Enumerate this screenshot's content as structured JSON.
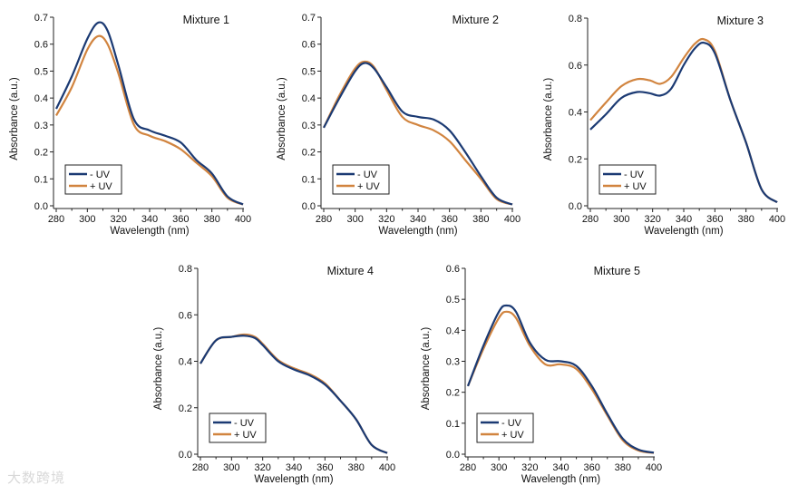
{
  "colors": {
    "minus_uv": "#1b3a73",
    "plus_uv": "#d1843f"
  },
  "logo_text": "大数跨境",
  "chart_data": [
    {
      "type": "line",
      "title": "Mixture 1",
      "xlabel": "Wavelength (nm)",
      "ylabel": "Absorbance (a.u.)",
      "xlim": [
        280,
        400
      ],
      "ylim": [
        0,
        0.7
      ],
      "xticks": [
        280,
        300,
        320,
        340,
        360,
        380,
        400
      ],
      "yticks": [
        "0.0",
        "0.1",
        "0.2",
        "0.3",
        "0.4",
        "0.5",
        "0.6",
        "0.7"
      ],
      "legend": {
        "position": "bottom-left",
        "entries": [
          "- UV",
          "+ UV"
        ]
      },
      "x": [
        280,
        290,
        300,
        307,
        313,
        320,
        330,
        340,
        350,
        360,
        370,
        380,
        390,
        400
      ],
      "series": [
        {
          "name": "- UV",
          "values": [
            0.36,
            0.48,
            0.62,
            0.68,
            0.65,
            0.52,
            0.32,
            0.28,
            0.26,
            0.235,
            0.17,
            0.12,
            0.035,
            0.005
          ]
        },
        {
          "name": "+ UV",
          "values": [
            0.335,
            0.44,
            0.58,
            0.63,
            0.6,
            0.49,
            0.3,
            0.26,
            0.24,
            0.21,
            0.16,
            0.11,
            0.03,
            0.005
          ]
        }
      ]
    },
    {
      "type": "line",
      "title": "Mixture 2",
      "xlabel": "Wavelength (nm)",
      "ylabel": "Absorbance (a.u.)",
      "xlim": [
        280,
        400
      ],
      "ylim": [
        0,
        0.7
      ],
      "xticks": [
        280,
        300,
        320,
        340,
        360,
        380,
        400
      ],
      "yticks": [
        "0.0",
        "0.1",
        "0.2",
        "0.3",
        "0.4",
        "0.5",
        "0.6",
        "0.7"
      ],
      "legend": {
        "position": "bottom-left",
        "entries": [
          "- UV",
          "+ UV"
        ]
      },
      "x": [
        280,
        290,
        300,
        306,
        312,
        320,
        330,
        340,
        350,
        360,
        370,
        380,
        390,
        400
      ],
      "series": [
        {
          "name": "- UV",
          "values": [
            0.29,
            0.4,
            0.5,
            0.53,
            0.51,
            0.44,
            0.35,
            0.33,
            0.32,
            0.28,
            0.2,
            0.11,
            0.03,
            0.005
          ]
        },
        {
          "name": "+ UV",
          "values": [
            0.29,
            0.41,
            0.51,
            0.535,
            0.515,
            0.43,
            0.33,
            0.3,
            0.28,
            0.24,
            0.17,
            0.1,
            0.025,
            0.005
          ]
        }
      ]
    },
    {
      "type": "line",
      "title": "Mixture 3",
      "xlabel": "Wavelength (nm)",
      "ylabel": "Absorbance (a.u.)",
      "xlim": [
        280,
        400
      ],
      "ylim": [
        0,
        0.8
      ],
      "xticks": [
        280,
        300,
        320,
        340,
        360,
        380,
        400
      ],
      "yticks": [
        "0.0",
        "0.2",
        "0.4",
        "0.6",
        "0.8"
      ],
      "legend": {
        "position": "bottom-left",
        "entries": [
          "- UV",
          "+ UV"
        ]
      },
      "x": [
        280,
        290,
        300,
        310,
        318,
        325,
        332,
        340,
        347,
        353,
        360,
        370,
        380,
        390,
        400
      ],
      "series": [
        {
          "name": "- UV",
          "values": [
            0.325,
            0.39,
            0.46,
            0.485,
            0.48,
            0.47,
            0.5,
            0.6,
            0.67,
            0.695,
            0.65,
            0.45,
            0.27,
            0.07,
            0.015
          ]
        },
        {
          "name": "+ UV",
          "values": [
            0.365,
            0.44,
            0.51,
            0.54,
            0.535,
            0.52,
            0.55,
            0.63,
            0.69,
            0.71,
            0.66,
            0.45,
            0.27,
            0.07,
            0.015
          ]
        }
      ]
    },
    {
      "type": "line",
      "title": "Mixture 4",
      "xlabel": "Wavelength (nm)",
      "ylabel": "Absorbance (a.u.)",
      "xlim": [
        280,
        400
      ],
      "ylim": [
        0,
        0.8
      ],
      "xticks": [
        280,
        300,
        320,
        340,
        360,
        380,
        400
      ],
      "yticks": [
        "0.0",
        "0.2",
        "0.4",
        "0.6",
        "0.8"
      ],
      "legend": {
        "position": "bottom-left",
        "entries": [
          "- UV",
          "+ UV"
        ]
      },
      "x": [
        280,
        290,
        300,
        308,
        315,
        320,
        330,
        340,
        350,
        360,
        370,
        380,
        390,
        400
      ],
      "series": [
        {
          "name": "- UV",
          "values": [
            0.39,
            0.49,
            0.505,
            0.51,
            0.5,
            0.47,
            0.4,
            0.365,
            0.34,
            0.3,
            0.23,
            0.15,
            0.04,
            0.005
          ]
        },
        {
          "name": "+ UV",
          "values": [
            0.39,
            0.49,
            0.505,
            0.515,
            0.505,
            0.475,
            0.405,
            0.37,
            0.345,
            0.305,
            0.23,
            0.15,
            0.04,
            0.005
          ]
        }
      ]
    },
    {
      "type": "line",
      "title": "Mixture 5",
      "xlabel": "Wavelength (nm)",
      "ylabel": "Absorbance (a.u.)",
      "xlim": [
        280,
        400
      ],
      "ylim": [
        0,
        0.6
      ],
      "xticks": [
        280,
        300,
        320,
        340,
        360,
        380,
        400
      ],
      "yticks": [
        "0.0",
        "0.1",
        "0.2",
        "0.3",
        "0.4",
        "0.5",
        "0.6"
      ],
      "legend": {
        "position": "bottom-left",
        "entries": [
          "- UV",
          "+ UV"
        ]
      },
      "x": [
        280,
        290,
        300,
        305,
        311,
        320,
        330,
        340,
        350,
        360,
        370,
        380,
        390,
        400
      ],
      "series": [
        {
          "name": "- UV",
          "values": [
            0.22,
            0.35,
            0.46,
            0.48,
            0.46,
            0.36,
            0.305,
            0.3,
            0.285,
            0.22,
            0.13,
            0.05,
            0.015,
            0.005
          ]
        },
        {
          "name": "+ UV",
          "values": [
            0.22,
            0.34,
            0.44,
            0.46,
            0.44,
            0.35,
            0.29,
            0.29,
            0.275,
            0.21,
            0.125,
            0.045,
            0.012,
            0.004
          ]
        }
      ]
    }
  ]
}
